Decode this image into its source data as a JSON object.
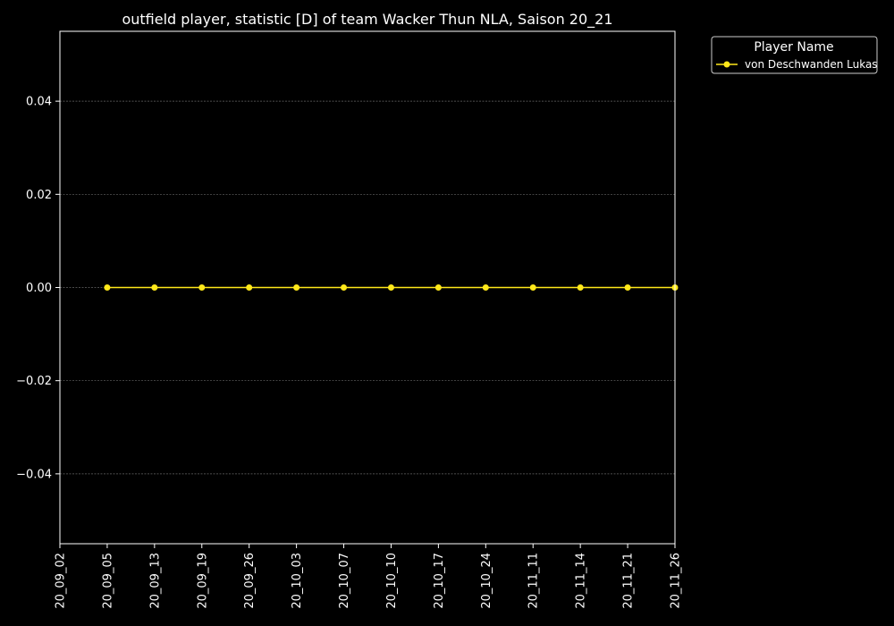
{
  "chart_data": {
    "type": "line",
    "title": "outfield player, statistic [D] of team Wacker Thun NLA, Saison 20_21",
    "xlabel": "",
    "ylabel": "",
    "categories": [
      "20_09_02",
      "20_09_05",
      "20_09_13",
      "20_09_19",
      "20_09_26",
      "20_10_03",
      "20_10_07",
      "20_10_10",
      "20_10_17",
      "20_10_24",
      "20_11_11",
      "20_11_14",
      "20_11_21",
      "20_11_26"
    ],
    "series": [
      {
        "name": "von Deschwanden Lukas",
        "color": "#ffe81a",
        "x": [
          "20_09_05",
          "20_09_13",
          "20_09_19",
          "20_09_26",
          "20_10_03",
          "20_10_07",
          "20_10_10",
          "20_10_17",
          "20_10_24",
          "20_11_11",
          "20_11_14",
          "20_11_21",
          "20_11_26"
        ],
        "values": [
          0,
          0,
          0,
          0,
          0,
          0,
          0,
          0,
          0,
          0,
          0,
          0,
          0
        ]
      }
    ],
    "ylim": [
      -0.055,
      0.055
    ],
    "yticks": [
      -0.04,
      -0.02,
      0.0,
      0.02,
      0.04
    ],
    "ytick_labels": [
      "−0.04",
      "−0.02",
      "0.00",
      "0.02",
      "0.04"
    ],
    "grid": true,
    "legend": {
      "title": "Player Name",
      "placement": "outside-top-right"
    },
    "colors": {
      "background": "#000000",
      "axes": "#ffffff",
      "grid": "#666666",
      "text": "#ffffff"
    }
  }
}
